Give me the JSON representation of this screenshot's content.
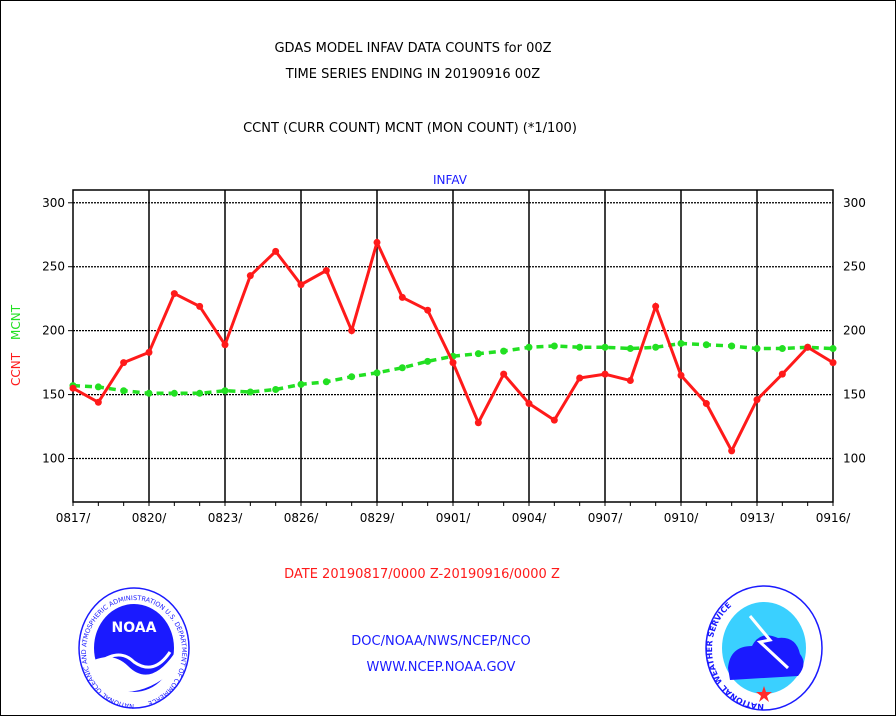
{
  "header": {
    "title_line1": "GDAS MODEL INFAV DATA COUNTS for 00Z",
    "title_line2": "TIME SERIES ENDING IN 20190916 00Z",
    "subtitle": "CCNT (CURR COUNT) MCNT (MON COUNT) (*1/100)"
  },
  "footer": {
    "date_range": "DATE 20190817/0000 Z-20190916/0000 Z",
    "org_path": "DOC/NOAA/NWS/NCEP/NCO",
    "website": "WWW.NCEP.NOAA.GOV"
  },
  "logos": {
    "noaa_text": "NOAA",
    "noaa_ring": "NATIONAL OCEANIC AND ATMOSPHERIC ADMINISTRATION U.S. DEPARTMENT OF COMMERCE",
    "nws_ring": "NATIONAL WEATHER SERVICE"
  },
  "colors": {
    "ccnt": "#ff1a1a",
    "mcnt": "#22e022",
    "plot_label": "#1a1aff"
  },
  "chart_data": {
    "type": "line",
    "title": "INFAV",
    "ylabel_ccnt": "CCNT",
    "ylabel_mcnt": "MCNT",
    "ylim": [
      66,
      310
    ],
    "yticks": [
      100,
      150,
      200,
      250,
      300
    ],
    "x_tick_labels": [
      "0817/",
      "0820/",
      "0823/",
      "0826/",
      "0829/",
      "0901/",
      "0904/",
      "0907/",
      "0910/",
      "0913/",
      "0916/"
    ],
    "x_tick_day_index": [
      0,
      3,
      6,
      9,
      12,
      15,
      18,
      21,
      24,
      27,
      30
    ],
    "x_days": 30,
    "grid": true,
    "series": [
      {
        "name": "CCNT",
        "style": "solid",
        "values": [
          155,
          144,
          175,
          183,
          229,
          219,
          189,
          243,
          262,
          236,
          247,
          200,
          269,
          226,
          216,
          175,
          128,
          166,
          143,
          130,
          163,
          166,
          161,
          219,
          165,
          143,
          106,
          146,
          166,
          187,
          175
        ]
      },
      {
        "name": "MCNT",
        "style": "dashed",
        "values": [
          157,
          156,
          153,
          151,
          151,
          151,
          153,
          152,
          154,
          158,
          160,
          164,
          167,
          171,
          176,
          180,
          182,
          184,
          187,
          188,
          187,
          187,
          186,
          187,
          190,
          189,
          188,
          186,
          186,
          187,
          186
        ]
      }
    ]
  }
}
